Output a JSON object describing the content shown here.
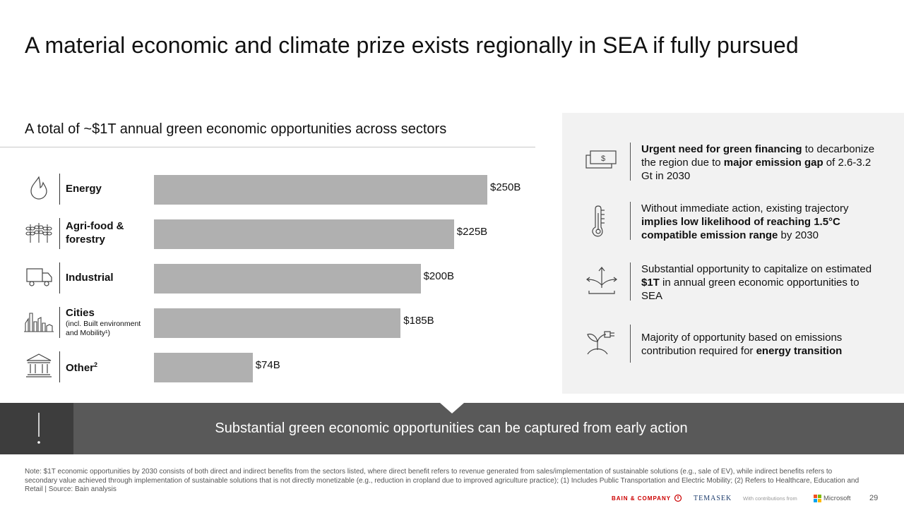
{
  "title": "A material economic and climate prize exists regionally in SEA if fully pursued",
  "subtitle": "A total of ~$1T annual green economic opportunities across sectors",
  "chart_data": {
    "type": "bar",
    "orientation": "horizontal",
    "categories": [
      "Energy",
      "Agri-food & forestry",
      "Industrial",
      "Cities",
      "Other"
    ],
    "values": [
      250,
      225,
      200,
      185,
      74
    ],
    "value_labels": [
      "$250B",
      "$225B",
      "$200B",
      "$185B",
      "$74B"
    ],
    "unit": "$B",
    "xlim": [
      0,
      250
    ],
    "grid": false,
    "bar_color": "#b0b0b0"
  },
  "sectors": [
    {
      "label_line1": "Energy",
      "label_line2": "",
      "sup": "",
      "note": "",
      "icon": "flame-icon"
    },
    {
      "label_line1": "Agri-food &",
      "label_line2": "forestry",
      "sup": "",
      "note": "",
      "icon": "wheat-icon"
    },
    {
      "label_line1": "Industrial",
      "label_line2": "",
      "sup": "",
      "note": "",
      "icon": "truck-icon"
    },
    {
      "label_line1": "Cities",
      "label_line2": "",
      "sup": "",
      "note": "(incl. Built environment and Mobility¹)",
      "icon": "city-icon"
    },
    {
      "label_line1": "Other",
      "label_line2": "",
      "sup": "2",
      "note": "",
      "icon": "building-icon"
    }
  ],
  "panel": [
    {
      "icon": "money-icon",
      "parts": [
        {
          "t": "Urgent need for green financing",
          "b": true
        },
        {
          "t": " to decarbonize the region due to ",
          "b": false
        },
        {
          "t": "major emission gap",
          "b": true
        },
        {
          "t": " of 2.6-3.2 Gt in 2030",
          "b": false
        }
      ]
    },
    {
      "icon": "thermometer-icon",
      "parts": [
        {
          "t": "Without immediate action, existing trajectory ",
          "b": false
        },
        {
          "t": "implies low likelihood of reaching 1.5°C compatible emission range",
          "b": true
        },
        {
          "t": " by 2030",
          "b": false
        }
      ]
    },
    {
      "icon": "growth-arrows-icon",
      "parts": [
        {
          "t": "Substantial opportunity to capitalize on estimated ",
          "b": false
        },
        {
          "t": "$1T",
          "b": true
        },
        {
          "t": " in annual green economic opportunities to SEA",
          "b": false
        }
      ]
    },
    {
      "icon": "plant-plug-icon",
      "parts": [
        {
          "t": "Majority of opportunity based on emissions contribution required for ",
          "b": false
        },
        {
          "t": "energy transition",
          "b": true
        }
      ]
    }
  ],
  "banner": {
    "text": "Substantial green economic opportunities can be captured from early action",
    "icon": "exclamation-icon"
  },
  "note": "Note: $1T economic opportunities by 2030 consists of both direct and indirect benefits from the sectors listed, where direct benefit refers to revenue generated from sales/implementation of sustainable solutions (e.g., sale of EV), while indirect benefits refers to secondary value achieved through implementation of sustainable solutions that is not directly monetizable (e.g., reduction in cropland due to improved agriculture practice); (1) Includes Public Transportation and Electric Mobility; (2) Refers to Healthcare, Education and Retail | Source: Bain analysis",
  "footer": {
    "bain": "BAIN & COMPANY",
    "temasek": "TEMASEK",
    "contrib": "With contributions from",
    "microsoft": "Microsoft",
    "page": "29"
  }
}
